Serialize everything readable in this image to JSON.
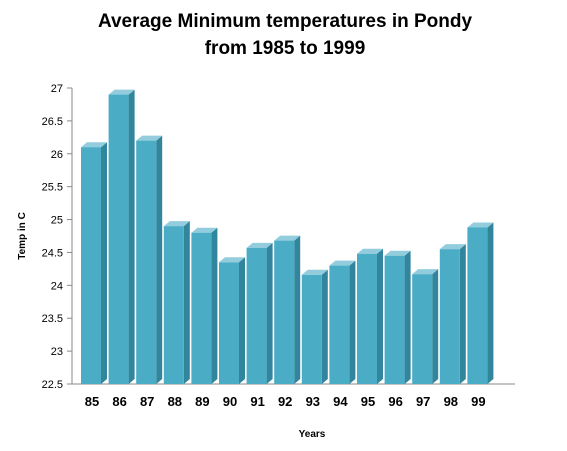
{
  "chart_data": {
    "type": "bar",
    "title_lines": [
      "Average Minimum temperatures in Pondy",
      "from 1985 to 1999"
    ],
    "xlabel": "Years",
    "ylabel": "Temp in C",
    "categories": [
      "85",
      "86",
      "87",
      "88",
      "89",
      "90",
      "91",
      "92",
      "93",
      "94",
      "95",
      "96",
      "97",
      "98",
      "99"
    ],
    "values": [
      26.1,
      26.9,
      26.2,
      24.9,
      24.8,
      24.35,
      24.57,
      24.68,
      24.16,
      24.3,
      24.48,
      24.45,
      24.17,
      24.55,
      24.88
    ],
    "ylim": [
      22.5,
      27
    ],
    "yticks": [
      "22.5",
      "23",
      "23.5",
      "24",
      "24.5",
      "25",
      "25.5",
      "26",
      "26.5",
      "27"
    ],
    "grid": false,
    "legend": "none",
    "colors": {
      "bar_front": "#4bacc6",
      "bar_side": "#31859c",
      "bar_top": "#93cddd"
    }
  }
}
